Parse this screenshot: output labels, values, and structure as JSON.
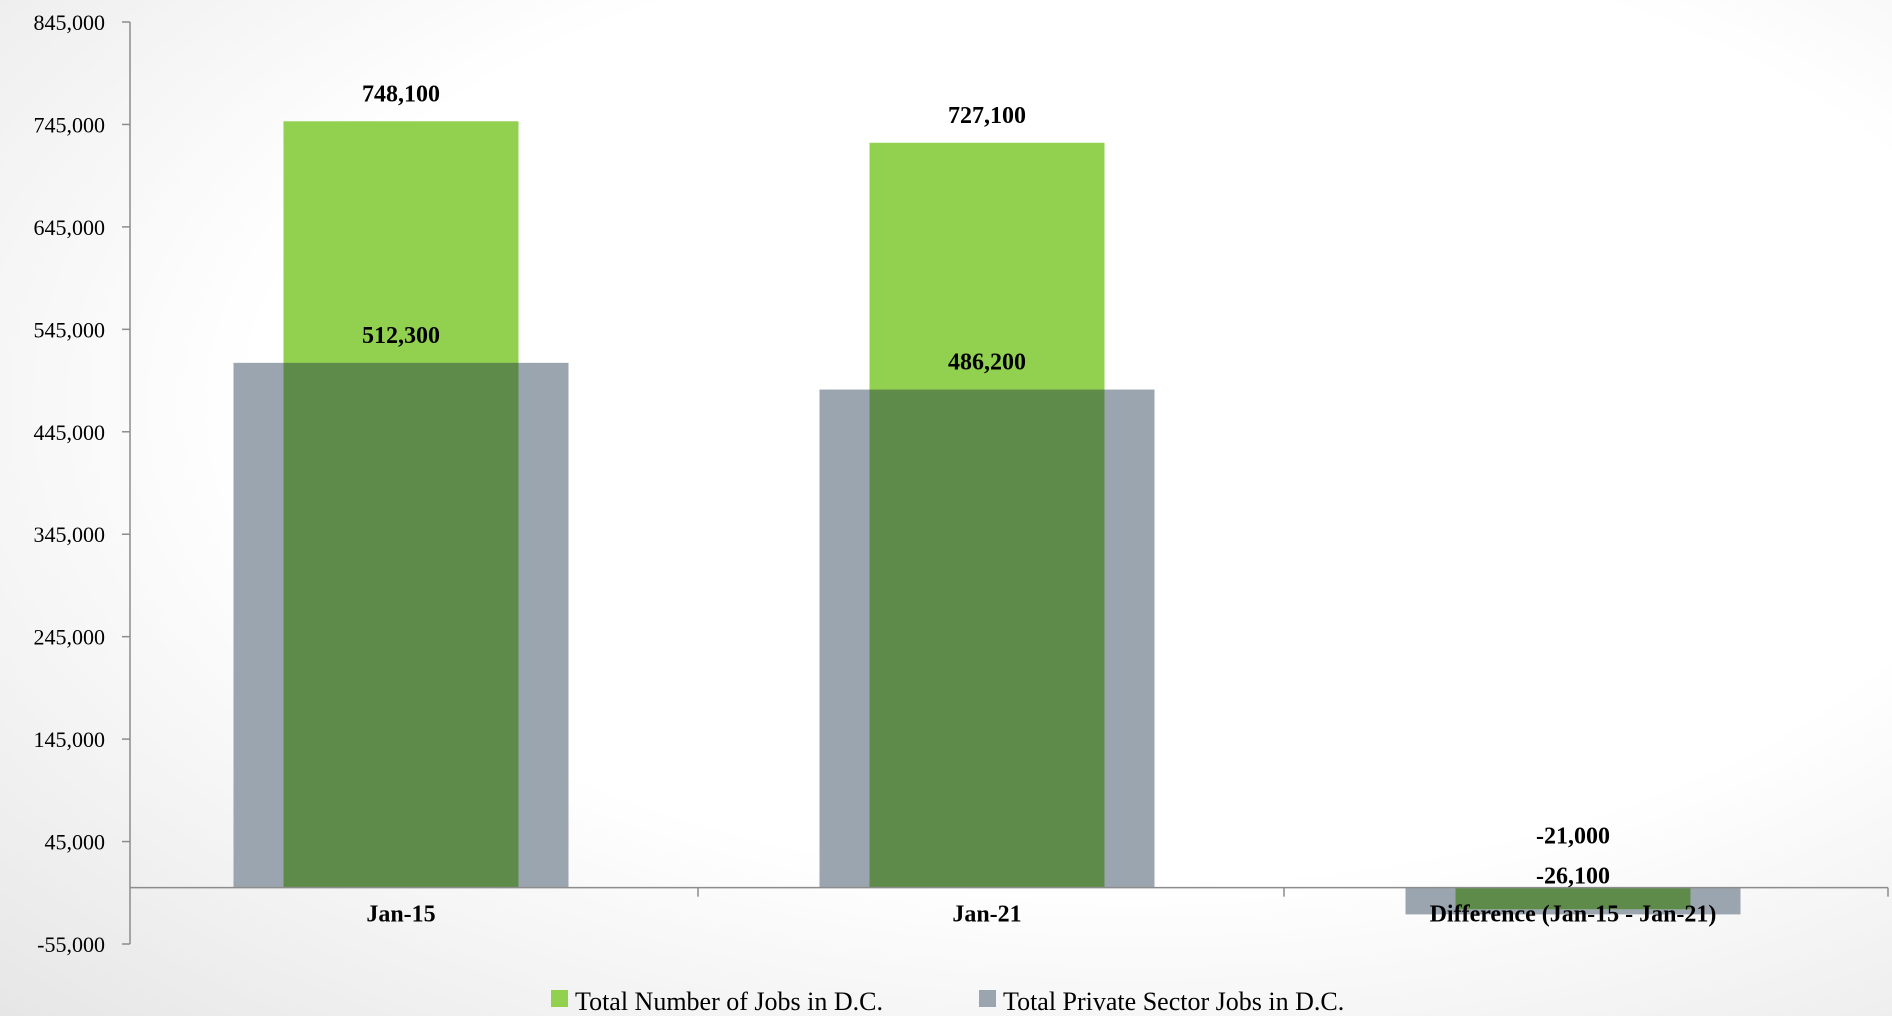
{
  "chart_data": {
    "type": "bar",
    "title": "",
    "xlabel": "",
    "ylabel": "",
    "categories": [
      "Jan-15",
      "Jan-21",
      "Difference (Jan-15 - Jan-21)"
    ],
    "series": [
      {
        "name": "Total Number of Jobs in D.C.",
        "color": "#92d050",
        "overlap_color": "#5e8b4a",
        "values": [
          748100,
          727100,
          -21000
        ],
        "labels": [
          "748,100",
          "727,100",
          "-21,000"
        ]
      },
      {
        "name": "Total Private Sector Jobs in D.C.",
        "color": "#9ba5b0",
        "values": [
          512300,
          486200,
          -26100
        ],
        "labels": [
          "512,300",
          "486,200",
          "-26,100"
        ]
      }
    ],
    "ylim": [
      -55000,
      845000
    ],
    "yticks": [
      -55000,
      45000,
      145000,
      245000,
      345000,
      445000,
      545000,
      645000,
      745000,
      845000
    ],
    "ytick_labels": [
      "-55,000",
      "45,000",
      "145,000",
      "245,000",
      "345,000",
      "445,000",
      "545,000",
      "645,000",
      "745,000",
      "845,000"
    ],
    "grid": false,
    "legend": "bottom"
  }
}
